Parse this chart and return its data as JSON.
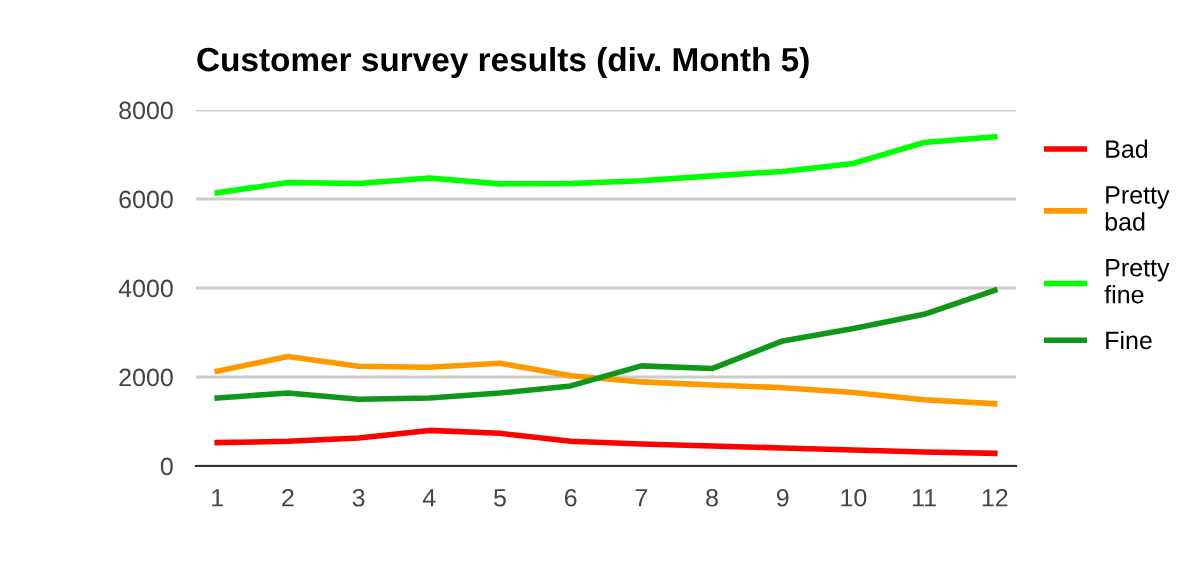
{
  "chart_data": {
    "type": "line",
    "title": "Customer survey results (div. Month 5)",
    "categories": [
      "1",
      "2",
      "3",
      "4",
      "5",
      "6",
      "7",
      "8",
      "9",
      "10",
      "11",
      "12"
    ],
    "series": [
      {
        "name": "Bad",
        "color": "#ff0000",
        "values": [
          525,
          555,
          630,
          800,
          735,
          555,
          495,
          450,
          405,
          360,
          315,
          285
        ]
      },
      {
        "name": "Pretty\nbad",
        "color": "#ff9900",
        "values": [
          2130,
          2460,
          2240,
          2220,
          2310,
          2030,
          1890,
          1820,
          1760,
          1650,
          1490,
          1400
        ]
      },
      {
        "name": "Pretty\nfine",
        "color": "#00ff00",
        "values": [
          6140,
          6370,
          6350,
          6470,
          6340,
          6350,
          6410,
          6520,
          6620,
          6800,
          7270,
          7400
        ]
      },
      {
        "name": "Fine",
        "color": "#109618",
        "values": [
          1530,
          1640,
          1500,
          1530,
          1640,
          1800,
          2250,
          2190,
          2810,
          3090,
          3410,
          3950
        ]
      }
    ],
    "ylim": [
      0,
      8000
    ],
    "yticks": [
      0,
      2000,
      4000,
      6000,
      8000
    ],
    "grid": "y",
    "legend": "right",
    "marker": "none",
    "line_style": "solid"
  }
}
